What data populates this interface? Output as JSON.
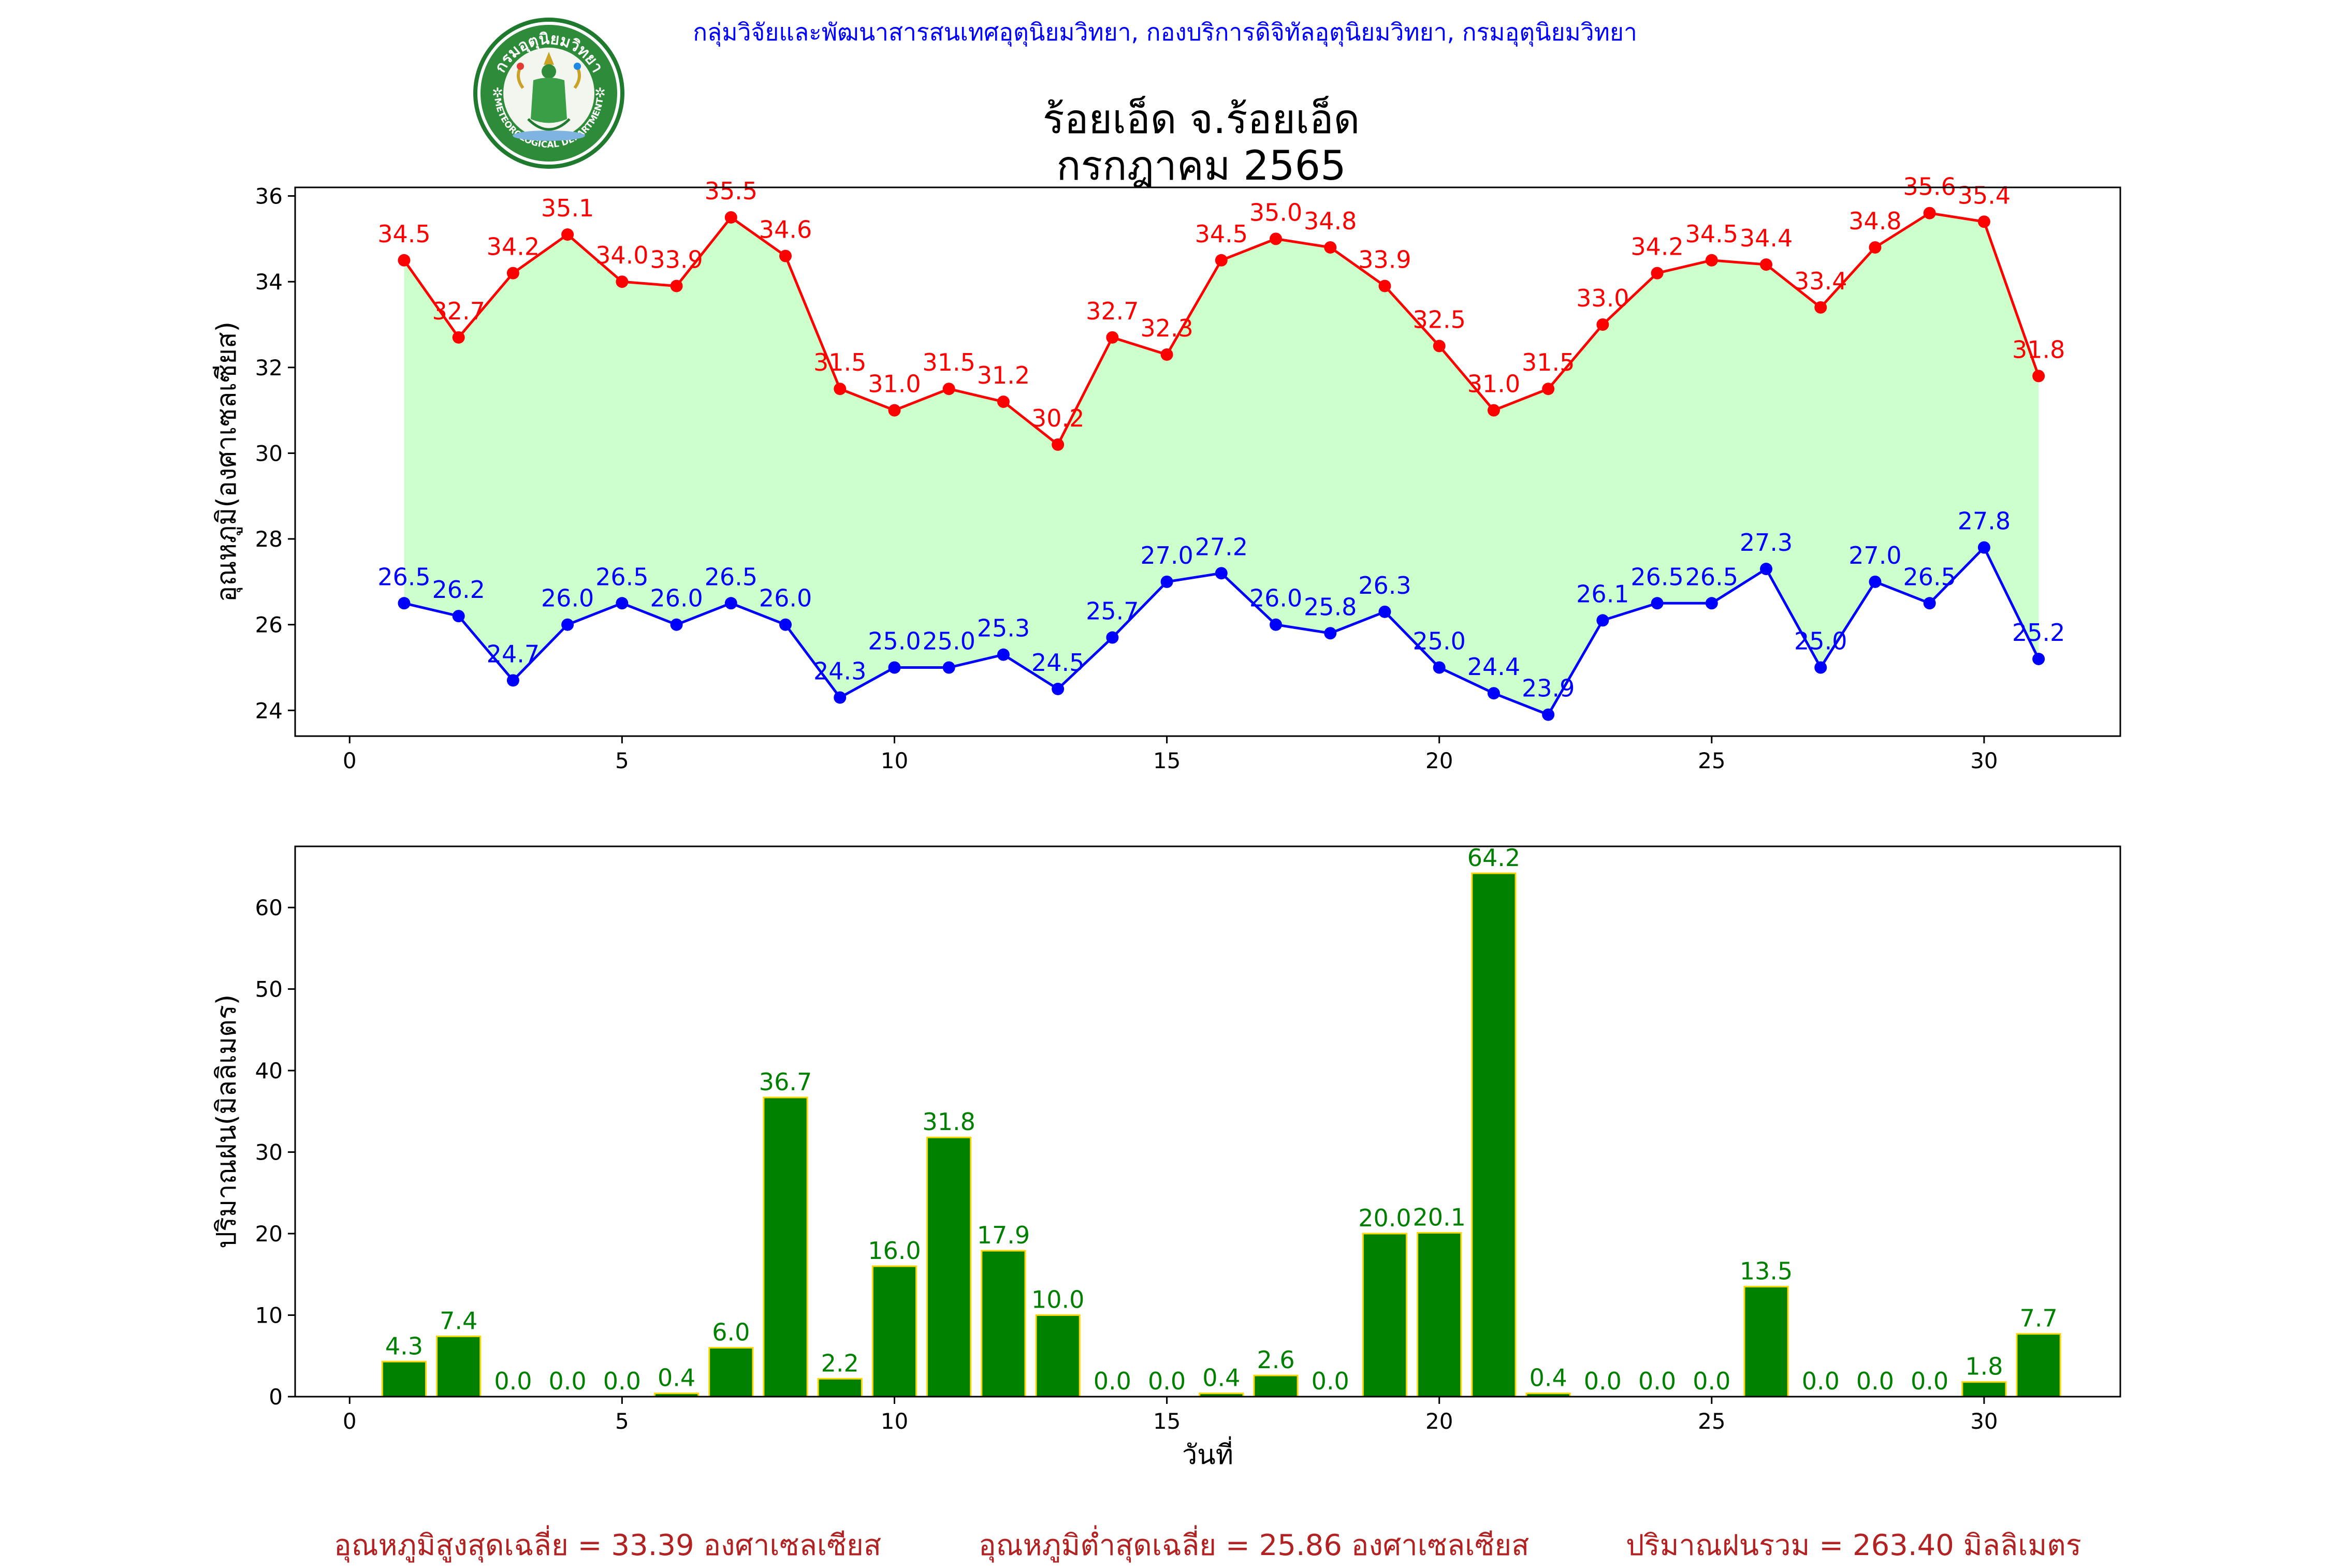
{
  "header": {
    "organization": "กลุ่มวิจัยและพัฒนาสารสนเทศอุตุนิยมวิทยา, กองบริการดิจิทัลอุตุนิยมวิทยา, กรมอุตุนิยมวิทยา",
    "title_line1": "ร้อยเอ็ด จ.ร้อยเอ็ด",
    "title_line2": "กรกฎาคม 2565",
    "logo": {
      "top_text": "กรมอุตุนิยมวิทยา",
      "bottom_text": "METEOROLOGICAL DEPARTMENT"
    }
  },
  "footer": {
    "avg_max": "อุณหภูมิสูงสุดเฉลี่ย = 33.39 องศาเซลเซียส",
    "avg_min": "อุณหภูมิต่ำสุดเฉลี่ย = 25.86 องศาเซลเซียส",
    "total_rain": "ปริมาณฝนรวม = 263.40 มิลลิเมตร"
  },
  "colors": {
    "max_series": "#ff0000",
    "min_series": "#0000ff",
    "band_fill": "#ccffcc",
    "rain_bar": "#008000",
    "rain_edge": "#ffd700",
    "rain_label": "#008000"
  },
  "chart_data": [
    {
      "type": "line",
      "ylabel": "อุณหภูมิ(องศาเซลเซียส)",
      "xlabel": "",
      "xlim": [
        -1,
        32.5
      ],
      "ylim": [
        23.4,
        36.2
      ],
      "xticks": [
        0,
        5,
        10,
        15,
        20,
        25,
        30
      ],
      "yticks": [
        24,
        26,
        28,
        30,
        32,
        34,
        36
      ],
      "fill_between": true,
      "x": [
        1,
        2,
        3,
        4,
        5,
        6,
        7,
        8,
        9,
        10,
        11,
        12,
        13,
        14,
        15,
        16,
        17,
        18,
        19,
        20,
        21,
        22,
        23,
        24,
        25,
        26,
        27,
        28,
        29,
        30,
        31
      ],
      "series": [
        {
          "name": "",
          "color": "#ff0000",
          "values": [
            34.5,
            32.7,
            34.2,
            35.1,
            34.0,
            33.9,
            35.5,
            34.6,
            31.5,
            31.0,
            31.5,
            31.2,
            30.2,
            32.7,
            32.3,
            34.5,
            35.0,
            34.8,
            33.9,
            32.5,
            31.0,
            31.5,
            33.0,
            34.2,
            34.5,
            34.4,
            33.4,
            34.8,
            35.6,
            35.4,
            31.8
          ]
        },
        {
          "name": "",
          "color": "#0000ff",
          "values": [
            26.5,
            26.2,
            24.7,
            26.0,
            26.5,
            26.0,
            26.5,
            26.0,
            24.3,
            25.0,
            25.0,
            25.3,
            24.5,
            25.7,
            27.0,
            27.2,
            26.0,
            25.8,
            26.3,
            25.0,
            24.4,
            23.9,
            26.1,
            26.5,
            26.5,
            27.3,
            25.0,
            27.0,
            26.5,
            27.8,
            25.2
          ]
        }
      ]
    },
    {
      "type": "bar",
      "ylabel": "ปริมาณฝน(มิลลิเมตร)",
      "xlabel": "วันที่",
      "xlim": [
        -1,
        32.5
      ],
      "ylim": [
        0,
        67.5
      ],
      "xticks": [
        0,
        5,
        10,
        15,
        20,
        25,
        30
      ],
      "yticks": [
        0,
        10,
        20,
        30,
        40,
        50,
        60
      ],
      "x": [
        1,
        2,
        3,
        4,
        5,
        6,
        7,
        8,
        9,
        10,
        11,
        12,
        13,
        14,
        15,
        16,
        17,
        18,
        19,
        20,
        21,
        22,
        23,
        24,
        25,
        26,
        27,
        28,
        29,
        30,
        31
      ],
      "values": [
        4.3,
        7.4,
        0.0,
        0.0,
        0.0,
        0.4,
        6.0,
        36.7,
        2.2,
        16.0,
        31.8,
        17.9,
        10.0,
        0.0,
        0.0,
        0.4,
        2.6,
        0.0,
        20.0,
        20.1,
        64.2,
        0.4,
        0.0,
        0.0,
        0.0,
        13.5,
        0.0,
        0.0,
        0.0,
        1.8,
        7.7
      ]
    }
  ]
}
